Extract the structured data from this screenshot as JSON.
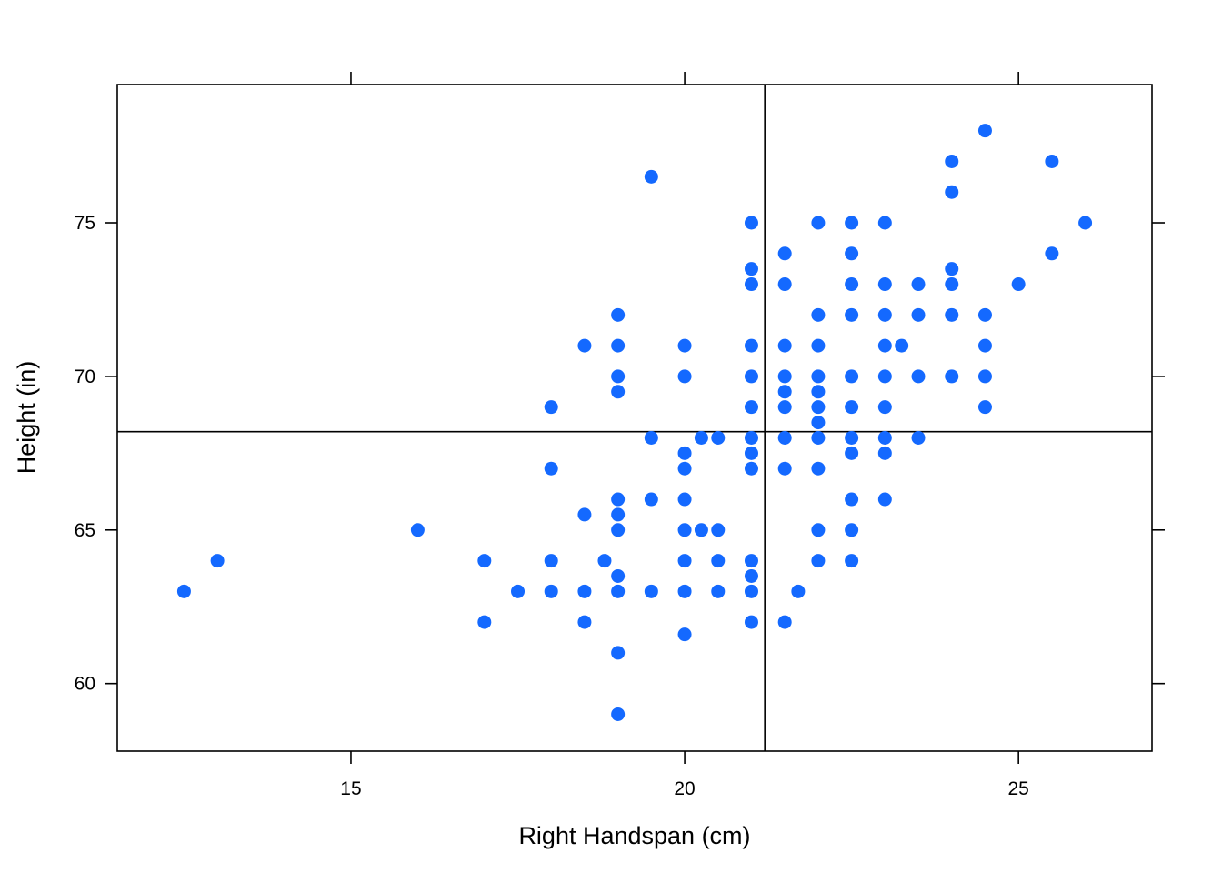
{
  "chart_data": {
    "type": "scatter",
    "title": "",
    "xlabel": "Right Handspan (cm)",
    "ylabel": "Height (in)",
    "xlim": [
      11.5,
      27
    ],
    "ylim": [
      57.8,
      79.5
    ],
    "xticks": [
      15,
      20,
      25
    ],
    "yticks": [
      60,
      65,
      70,
      75
    ],
    "grid": false,
    "point_color": "#1469FF",
    "reference_lines": {
      "x": 21.2,
      "y": 68.2
    },
    "points": [
      {
        "x": 12.5,
        "y": 63
      },
      {
        "x": 13,
        "y": 64
      },
      {
        "x": 16,
        "y": 65
      },
      {
        "x": 17,
        "y": 64
      },
      {
        "x": 17,
        "y": 62
      },
      {
        "x": 17.5,
        "y": 63
      },
      {
        "x": 18,
        "y": 69
      },
      {
        "x": 18,
        "y": 67
      },
      {
        "x": 18,
        "y": 64
      },
      {
        "x": 18,
        "y": 63
      },
      {
        "x": 18.5,
        "y": 71
      },
      {
        "x": 18.5,
        "y": 65.5
      },
      {
        "x": 18.5,
        "y": 63
      },
      {
        "x": 18.5,
        "y": 62
      },
      {
        "x": 18.8,
        "y": 64
      },
      {
        "x": 19,
        "y": 72
      },
      {
        "x": 19,
        "y": 71
      },
      {
        "x": 19,
        "y": 70
      },
      {
        "x": 19,
        "y": 69.5
      },
      {
        "x": 19,
        "y": 66
      },
      {
        "x": 19,
        "y": 65.5
      },
      {
        "x": 19,
        "y": 65
      },
      {
        "x": 19,
        "y": 63.5
      },
      {
        "x": 19,
        "y": 63
      },
      {
        "x": 19,
        "y": 61
      },
      {
        "x": 19,
        "y": 59
      },
      {
        "x": 19.5,
        "y": 76.5
      },
      {
        "x": 19.5,
        "y": 68
      },
      {
        "x": 19.5,
        "y": 66
      },
      {
        "x": 19.5,
        "y": 63
      },
      {
        "x": 20,
        "y": 71
      },
      {
        "x": 20,
        "y": 70
      },
      {
        "x": 20,
        "y": 67.5
      },
      {
        "x": 20,
        "y": 67
      },
      {
        "x": 20,
        "y": 66
      },
      {
        "x": 20,
        "y": 65
      },
      {
        "x": 20,
        "y": 64
      },
      {
        "x": 20,
        "y": 63
      },
      {
        "x": 20,
        "y": 61.6
      },
      {
        "x": 20.25,
        "y": 68
      },
      {
        "x": 20.25,
        "y": 65
      },
      {
        "x": 20.5,
        "y": 68
      },
      {
        "x": 20.5,
        "y": 65
      },
      {
        "x": 20.5,
        "y": 64
      },
      {
        "x": 20.5,
        "y": 63
      },
      {
        "x": 21,
        "y": 75
      },
      {
        "x": 21,
        "y": 73.5
      },
      {
        "x": 21,
        "y": 73
      },
      {
        "x": 21,
        "y": 71
      },
      {
        "x": 21,
        "y": 70
      },
      {
        "x": 21,
        "y": 69
      },
      {
        "x": 21,
        "y": 68
      },
      {
        "x": 21,
        "y": 67.5
      },
      {
        "x": 21,
        "y": 67
      },
      {
        "x": 21,
        "y": 64
      },
      {
        "x": 21,
        "y": 63.5
      },
      {
        "x": 21,
        "y": 63
      },
      {
        "x": 21,
        "y": 62
      },
      {
        "x": 21.5,
        "y": 74
      },
      {
        "x": 21.5,
        "y": 73
      },
      {
        "x": 21.5,
        "y": 71
      },
      {
        "x": 21.5,
        "y": 70
      },
      {
        "x": 21.5,
        "y": 69.5
      },
      {
        "x": 21.5,
        "y": 69
      },
      {
        "x": 21.5,
        "y": 68
      },
      {
        "x": 21.5,
        "y": 67
      },
      {
        "x": 21.5,
        "y": 62
      },
      {
        "x": 21.7,
        "y": 63
      },
      {
        "x": 22,
        "y": 75
      },
      {
        "x": 22,
        "y": 72
      },
      {
        "x": 22,
        "y": 71
      },
      {
        "x": 22,
        "y": 70
      },
      {
        "x": 22,
        "y": 69.5
      },
      {
        "x": 22,
        "y": 69
      },
      {
        "x": 22,
        "y": 68.5
      },
      {
        "x": 22,
        "y": 68
      },
      {
        "x": 22,
        "y": 67
      },
      {
        "x": 22,
        "y": 65
      },
      {
        "x": 22,
        "y": 64
      },
      {
        "x": 22.5,
        "y": 75
      },
      {
        "x": 22.5,
        "y": 74
      },
      {
        "x": 22.5,
        "y": 73
      },
      {
        "x": 22.5,
        "y": 72
      },
      {
        "x": 22.5,
        "y": 70
      },
      {
        "x": 22.5,
        "y": 69
      },
      {
        "x": 22.5,
        "y": 68
      },
      {
        "x": 22.5,
        "y": 67.5
      },
      {
        "x": 22.5,
        "y": 66
      },
      {
        "x": 22.5,
        "y": 65
      },
      {
        "x": 22.5,
        "y": 64
      },
      {
        "x": 23,
        "y": 75
      },
      {
        "x": 23,
        "y": 73
      },
      {
        "x": 23,
        "y": 72
      },
      {
        "x": 23,
        "y": 71
      },
      {
        "x": 23,
        "y": 70
      },
      {
        "x": 23,
        "y": 69
      },
      {
        "x": 23,
        "y": 68
      },
      {
        "x": 23,
        "y": 67.5
      },
      {
        "x": 23,
        "y": 66
      },
      {
        "x": 23.25,
        "y": 71
      },
      {
        "x": 23.5,
        "y": 73
      },
      {
        "x": 23.5,
        "y": 72
      },
      {
        "x": 23.5,
        "y": 70
      },
      {
        "x": 23.5,
        "y": 68
      },
      {
        "x": 24,
        "y": 77
      },
      {
        "x": 24,
        "y": 76
      },
      {
        "x": 24,
        "y": 73.5
      },
      {
        "x": 24,
        "y": 73
      },
      {
        "x": 24,
        "y": 72
      },
      {
        "x": 24,
        "y": 70
      },
      {
        "x": 24.5,
        "y": 78
      },
      {
        "x": 24.5,
        "y": 72
      },
      {
        "x": 24.5,
        "y": 71
      },
      {
        "x": 24.5,
        "y": 70
      },
      {
        "x": 24.5,
        "y": 69
      },
      {
        "x": 25,
        "y": 73
      },
      {
        "x": 25.5,
        "y": 77
      },
      {
        "x": 25.5,
        "y": 74
      },
      {
        "x": 26,
        "y": 75
      }
    ]
  }
}
